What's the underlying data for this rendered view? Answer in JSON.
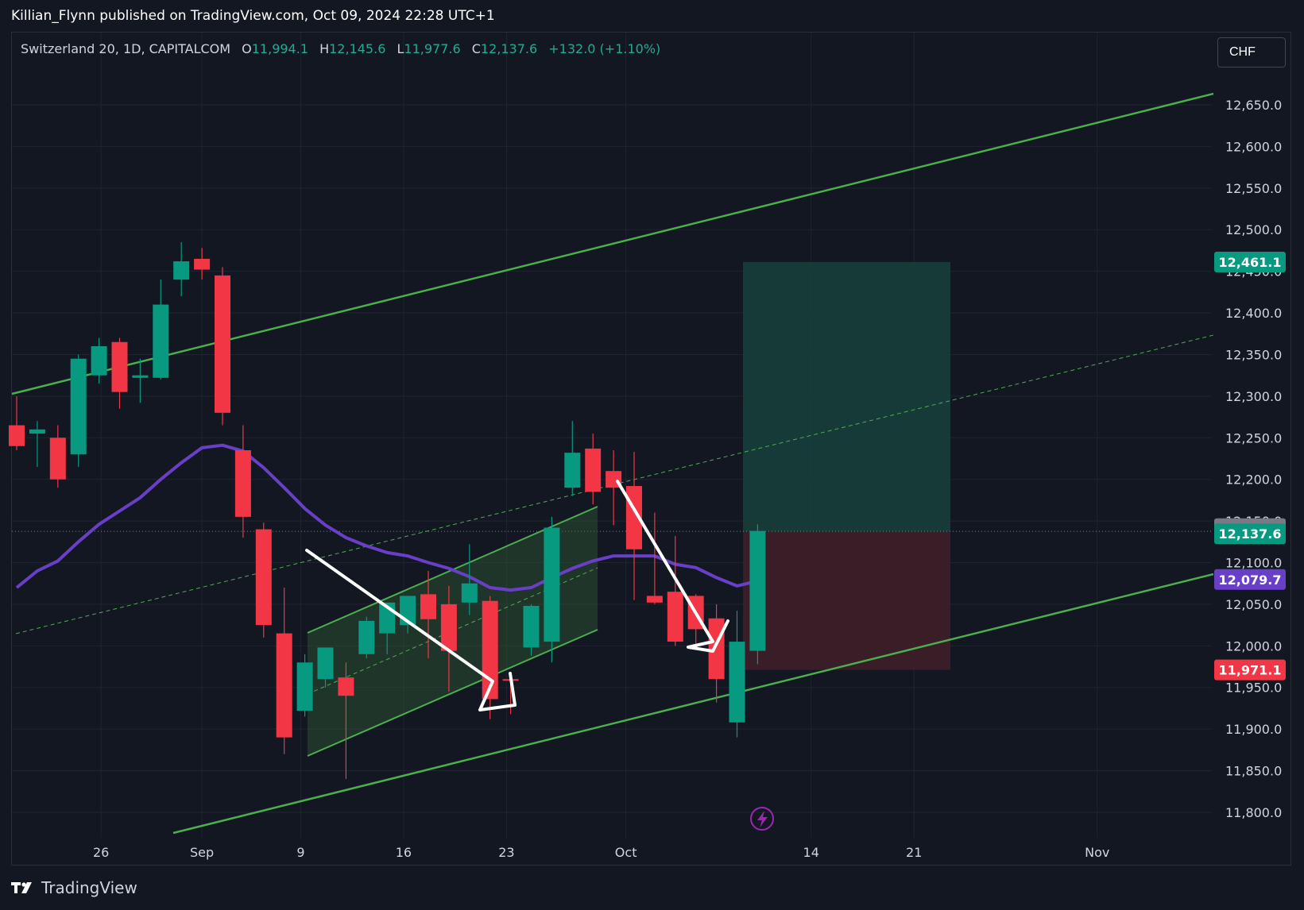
{
  "publisher": "Killian_Flynn published on TradingView.com, Oct 09, 2024 22:28 UTC+1",
  "legend": {
    "symbol": "Switzerland 20, 1D, CAPITALCOM",
    "o_label": "O",
    "o": "11,994.1",
    "h_label": "H",
    "h": "12,145.6",
    "l_label": "L",
    "l": "11,977.6",
    "c_label": "C",
    "c": "12,137.6",
    "change": "+132.0 (+1.10%)"
  },
  "currency": "CHF",
  "footer": {
    "brand": "TradingView"
  },
  "colors": {
    "background": "#131722",
    "grid": "#1f2430",
    "up": "#089981",
    "down": "#f23645",
    "ma": "#6a3fc7",
    "channel": "#4caf50",
    "target_zone": "#18413b",
    "stop_zone": "#3e1f28",
    "text": "#d1d4dc"
  },
  "chart_data": {
    "type": "candlestick",
    "x_tick_labels": [
      "26",
      "Sep",
      "9",
      "16",
      "23",
      "Oct",
      "14",
      "21",
      "Nov"
    ],
    "y_tick_labels": [
      "12,650.0",
      "12,600.0",
      "12,550.0",
      "12,500.0",
      "12,450.0",
      "12,400.0",
      "12,350.0",
      "12,300.0",
      "12,250.0",
      "12,200.0",
      "12,150.0",
      "12,100.0",
      "12,050.0",
      "12,000.0",
      "11,950.0",
      "11,900.0",
      "11,850.0",
      "11,800.0"
    ],
    "y_ticks": [
      12650,
      12600,
      12550,
      12500,
      12450,
      12400,
      12350,
      12300,
      12250,
      12200,
      12150,
      12100,
      12050,
      12000,
      11950,
      11900,
      11850,
      11800
    ],
    "ylim": [
      11775,
      12735
    ],
    "candles": [
      {
        "o": 12265,
        "h": 12300,
        "l": 12235,
        "c": 12240
      },
      {
        "o": 12255,
        "h": 12270,
        "l": 12215,
        "c": 12260
      },
      {
        "o": 12250,
        "h": 12265,
        "l": 12190,
        "c": 12200
      },
      {
        "o": 12230,
        "h": 12350,
        "l": 12215,
        "c": 12345
      },
      {
        "o": 12325,
        "h": 12370,
        "l": 12315,
        "c": 12360
      },
      {
        "o": 12365,
        "h": 12370,
        "l": 12285,
        "c": 12305
      },
      {
        "o": 12322,
        "h": 12345,
        "l": 12292,
        "c": 12325
      },
      {
        "o": 12322,
        "h": 12440,
        "l": 12320,
        "c": 12410
      },
      {
        "o": 12440,
        "h": 12485,
        "l": 12420,
        "c": 12462
      },
      {
        "o": 12465,
        "h": 12478,
        "l": 12440,
        "c": 12452
      },
      {
        "o": 12445,
        "h": 12455,
        "l": 12265,
        "c": 12280
      },
      {
        "o": 12235,
        "h": 12265,
        "l": 12130,
        "c": 12155
      },
      {
        "o": 12140,
        "h": 12148,
        "l": 12010,
        "c": 12025
      },
      {
        "o": 12015,
        "h": 12070,
        "l": 11870,
        "c": 11890
      },
      {
        "o": 11922,
        "h": 11990,
        "l": 11915,
        "c": 11980
      },
      {
        "o": 11960,
        "h": 11998,
        "l": 11950,
        "c": 11998
      },
      {
        "o": 11962,
        "h": 11980,
        "l": 11840,
        "c": 11940
      },
      {
        "o": 11990,
        "h": 12035,
        "l": 11985,
        "c": 12030
      },
      {
        "o": 12015,
        "h": 12050,
        "l": 11990,
        "c": 12052
      },
      {
        "o": 12025,
        "h": 12055,
        "l": 12015,
        "c": 12060
      },
      {
        "o": 12062,
        "h": 12090,
        "l": 11985,
        "c": 12032
      },
      {
        "o": 12050,
        "h": 12072,
        "l": 11945,
        "c": 11994
      },
      {
        "o": 12052,
        "h": 12122,
        "l": 12037,
        "c": 12075
      },
      {
        "o": 12054,
        "h": 12060,
        "l": 11912,
        "c": 11936
      },
      {
        "o": 11960,
        "h": 11962,
        "l": 11918,
        "c": 11958
      },
      {
        "o": 11998,
        "h": 12050,
        "l": 11988,
        "c": 12048
      },
      {
        "o": 12005,
        "h": 12155,
        "l": 11980,
        "c": 12142
      },
      {
        "o": 12190,
        "h": 12270,
        "l": 12180,
        "c": 12232
      },
      {
        "o": 12237,
        "h": 12255,
        "l": 12170,
        "c": 12185
      },
      {
        "o": 12210,
        "h": 12235,
        "l": 12145,
        "c": 12190
      },
      {
        "o": 12192,
        "h": 12233,
        "l": 12055,
        "c": 12116
      },
      {
        "o": 12060,
        "h": 12160,
        "l": 12050,
        "c": 12052
      },
      {
        "o": 12065,
        "h": 12132,
        "l": 12000,
        "c": 12005
      },
      {
        "o": 12060,
        "h": 12062,
        "l": 12000,
        "c": 12020
      },
      {
        "o": 12033,
        "h": 12050,
        "l": 11932,
        "c": 11960
      },
      {
        "o": 11908,
        "h": 12042,
        "l": 11890,
        "c": 12005
      },
      {
        "o": 11994,
        "h": 12146,
        "l": 11978,
        "c": 12138
      }
    ],
    "ma": [
      12070,
      12090,
      12102,
      12125,
      12146,
      12162,
      12178,
      12200,
      12220,
      12238,
      12241,
      12234,
      12214,
      12190,
      12165,
      12145,
      12130,
      12120,
      12112,
      12108,
      12100,
      12093,
      12083,
      12070,
      12067,
      12070,
      12082,
      12093,
      12102,
      12108,
      12108,
      12108,
      12098,
      12094,
      12082,
      12072,
      12078
    ],
    "trade": {
      "entry": 12137.6,
      "target": 12461.1,
      "stop": 11971.1,
      "ma_value": 12079.7,
      "last_close": 12137.8
    },
    "price_labels": {
      "target": "12,461.1",
      "last": "12,137.8",
      "close": "12,137.6",
      "ma": "12,079.7",
      "stop": "11,971.1"
    }
  }
}
